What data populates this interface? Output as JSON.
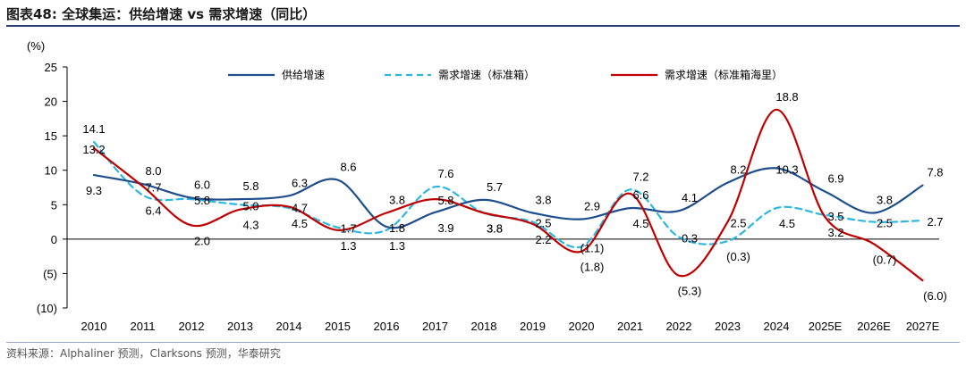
{
  "title": "图表48:  全球集运：供给增速 vs 需求增速（同比）",
  "source": "资料来源：Alphaliner 预测，Clarksons 预测，华泰研究",
  "colors": {
    "supply": "#1f4e8c",
    "demand_teu": "#2db7e0",
    "demand_teumile": "#c00000",
    "axis": "#000000",
    "rule": "#2b3f73"
  },
  "chart_data": {
    "type": "line",
    "unit_label": "(%)",
    "categories": [
      "2010",
      "2011",
      "2012",
      "2013",
      "2014",
      "2015",
      "2016",
      "2017",
      "2018",
      "2019",
      "2020",
      "2021",
      "2022",
      "2023",
      "2024",
      "2025E",
      "2026E",
      "2027E"
    ],
    "ylim": [
      -10,
      25
    ],
    "yticks": [
      "25",
      "20",
      "15",
      "10",
      "5",
      "0",
      "(5)",
      "(10)"
    ],
    "ytick_values": [
      25,
      20,
      15,
      10,
      5,
      0,
      -5,
      -10
    ],
    "series": [
      {
        "name": "供给增速",
        "style": "solid",
        "values": [
          9.3,
          8.0,
          6.0,
          5.8,
          6.3,
          8.6,
          1.8,
          3.9,
          5.7,
          3.8,
          2.9,
          4.5,
          4.1,
          8.2,
          10.3,
          6.9,
          3.8,
          7.8
        ],
        "labels": [
          "9.3",
          "8.0",
          "6.0",
          "5.8",
          "6.3",
          "8.6",
          "1.8",
          "3.9",
          "5.7",
          "3.8",
          "2.9",
          "4.5",
          "4.1",
          "8.2",
          "10.3",
          "6.9",
          "3.8",
          "7.8"
        ]
      },
      {
        "name": "需求增速（标准箱）",
        "style": "dashed",
        "values": [
          14.1,
          6.4,
          5.8,
          5.0,
          4.5,
          1.7,
          1.3,
          7.6,
          3.8,
          2.5,
          -1.1,
          7.2,
          0.3,
          -0.3,
          4.5,
          3.5,
          2.5,
          2.7
        ],
        "labels": [
          "14.1",
          "6.4",
          "5.8",
          "5.0",
          "4.5",
          "1.7",
          "1.3",
          "7.6",
          "3.8",
          "2.5",
          "(1.1)",
          "7.2",
          "0.3",
          "(0.3)",
          "4.5",
          "3.5",
          "2.5",
          "2.7"
        ]
      },
      {
        "name": "需求增速（标准箱海里）",
        "style": "solid",
        "values": [
          13.2,
          7.7,
          2.0,
          4.3,
          4.7,
          1.3,
          3.8,
          5.8,
          3.8,
          2.2,
          -1.8,
          6.6,
          -5.3,
          2.5,
          18.8,
          3.2,
          -0.7,
          -6.0
        ],
        "labels": [
          "13.2",
          "7.7",
          "2.0",
          "4.3",
          "4.7",
          "1.3",
          "3.8",
          "5.8",
          "3.8",
          "2.2",
          "(1.8)",
          "6.6",
          "(5.3)",
          "2.5",
          "18.8",
          "3.2",
          "(0.7)",
          "(6.0)"
        ]
      }
    ],
    "legend_position": "top"
  }
}
